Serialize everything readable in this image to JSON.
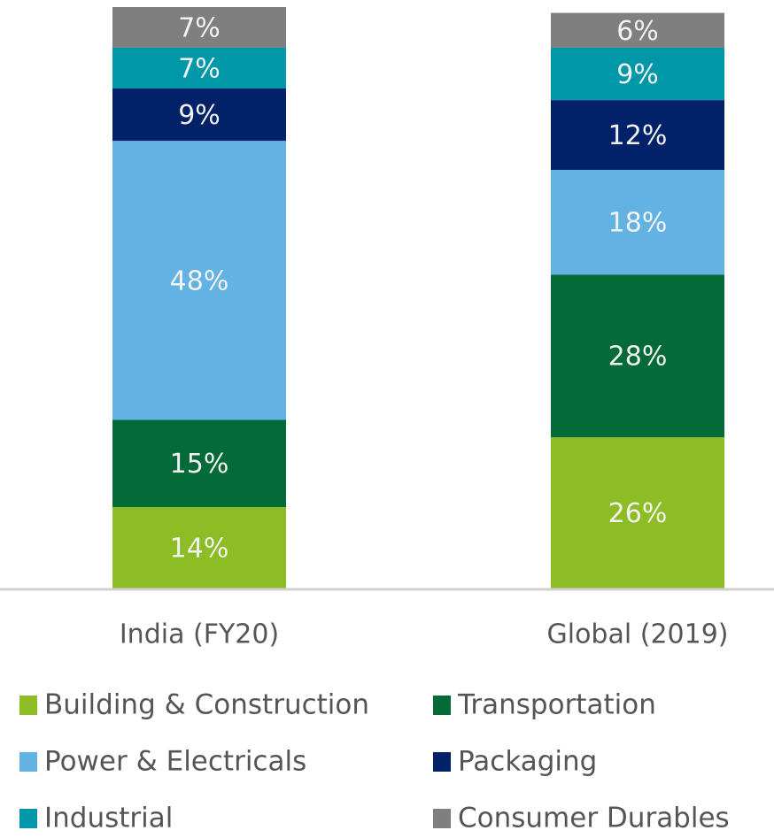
{
  "chart_data": {
    "type": "stacked_bar",
    "categories": [
      "India (FY20)",
      "Global (2019)"
    ],
    "ylim": [
      0,
      100
    ],
    "series": [
      {
        "name": "Building & Construction",
        "color": "#8cbd24",
        "values": [
          14,
          26
        ],
        "value_labels": [
          "14%",
          "26%"
        ]
      },
      {
        "name": "Transportation",
        "color": "#046a38",
        "values": [
          15,
          28
        ],
        "value_labels": [
          "15%",
          "28%"
        ]
      },
      {
        "name": "Power & Electricals",
        "color": "#62b2e4",
        "values": [
          48,
          18
        ],
        "value_labels": [
          "48%",
          "18%"
        ]
      },
      {
        "name": "Packaging",
        "color": "#012169",
        "values": [
          9,
          12
        ],
        "value_labels": [
          "9%",
          "12%"
        ]
      },
      {
        "name": "Industrial",
        "color": "#0097a9",
        "values": [
          7,
          9
        ],
        "value_labels": [
          "7%",
          "9%"
        ]
      },
      {
        "name": "Consumer Durables",
        "color": "#7f7f7f",
        "values": [
          7,
          6
        ],
        "value_labels": [
          "7%",
          "6%"
        ]
      }
    ]
  }
}
